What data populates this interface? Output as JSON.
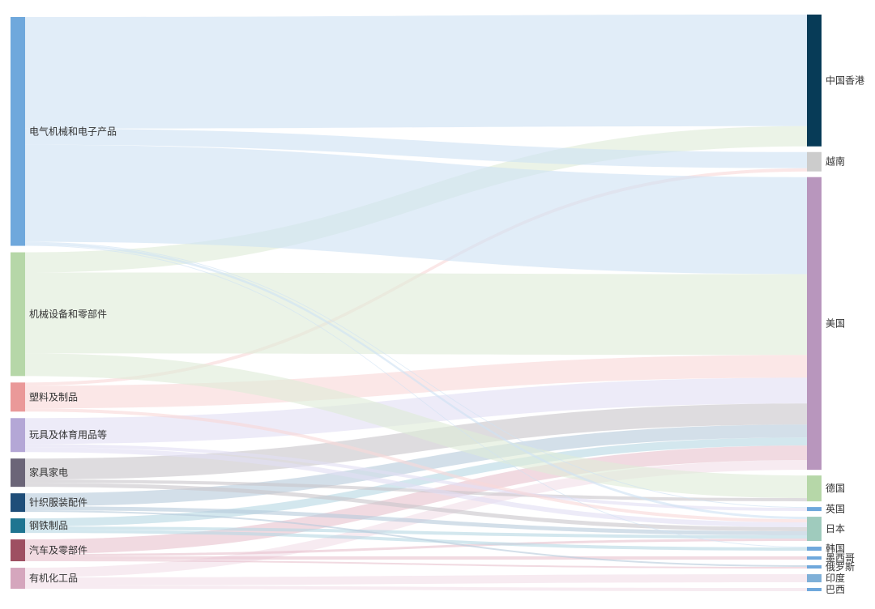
{
  "chart_data": {
    "type": "sankey",
    "colors": {
      "source": {
        "电气机械和电子产品": "#6fa8dc",
        "机械设备和零部件": "#b6d7a8",
        "塑料及制品": "#ea9999",
        "玩具及体育用品等": "#b4a7d6",
        "家具家电": "#6b6578",
        "针织服装配件": "#1f4e79",
        "钢铁制品": "#1f7591",
        "汽车及零部件": "#9e4f62",
        "有机化工品": "#d5a6bd"
      },
      "target": {
        "中国香港": "#073b57",
        "越南": "#cccccc",
        "美国": "#b896bd",
        "德国": "#b6d7a8",
        "英国": "#6fa8dc",
        "日本": "#9fcbbd",
        "韩国": "#6fa8dc",
        "墨西哥": "#6fa8dc",
        "俄罗斯": "#6fa8dc",
        "印度": "#7fb0d8",
        "巴西": "#6fa8dc"
      },
      "link": {
        "电气机械和电子产品": "#cfe2f3",
        "机械设备和零部件": "#dfecd8",
        "塑料及制品": "#f8d9d9",
        "玩具及体育用品等": "#e2def3",
        "家具家电": "#c9c6cc",
        "针织服装配件": "#b8ccdc",
        "钢铁制品": "#b8d9e3",
        "汽车及零部件": "#e8c4ce",
        "有机化工品": "#f2dfe8"
      }
    },
    "sources": [
      "电气机械和电子产品",
      "机械设备和零部件",
      "塑料及制品",
      "玩具及体育用品等",
      "家具家电",
      "针织服装配件",
      "钢铁制品",
      "汽车及零部件",
      "有机化工品"
    ],
    "targets": [
      "中国香港",
      "越南",
      "美国",
      "德国",
      "英国",
      "日本",
      "韩国",
      "墨西哥",
      "俄罗斯",
      "印度",
      "巴西"
    ],
    "links": [
      {
        "source": "电气机械和电子产品",
        "target": "中国香港",
        "value": 138
      },
      {
        "source": "电气机械和电子产品",
        "target": "越南",
        "value": 20
      },
      {
        "source": "电气机械和电子产品",
        "target": "美国",
        "value": 120
      },
      {
        "source": "电气机械和电子产品",
        "target": "英国",
        "value": 1
      },
      {
        "source": "电气机械和电子产品",
        "target": "日本",
        "value": 3
      },
      {
        "source": "电气机械和电子产品",
        "target": "韩国",
        "value": 1
      },
      {
        "source": "机械设备和零部件",
        "target": "中国香港",
        "value": 25
      },
      {
        "source": "机械设备和零部件",
        "target": "美国",
        "value": 100
      },
      {
        "source": "机械设备和零部件",
        "target": "德国",
        "value": 28
      },
      {
        "source": "塑料及制品",
        "target": "越南",
        "value": 4
      },
      {
        "source": "塑料及制品",
        "target": "美国",
        "value": 28
      },
      {
        "source": "塑料及制品",
        "target": "日本",
        "value": 4
      },
      {
        "source": "玩具及体育用品等",
        "target": "美国",
        "value": 32
      },
      {
        "source": "玩具及体育用品等",
        "target": "英国",
        "value": 4
      },
      {
        "source": "玩具及体育用品等",
        "target": "日本",
        "value": 6
      },
      {
        "source": "家具家电",
        "target": "美国",
        "value": 26
      },
      {
        "source": "家具家电",
        "target": "德国",
        "value": 4
      },
      {
        "source": "家具家电",
        "target": "日本",
        "value": 5
      },
      {
        "source": "针织服装配件",
        "target": "美国",
        "value": 16
      },
      {
        "source": "针织服装配件",
        "target": "日本",
        "value": 5
      },
      {
        "source": "针织服装配件",
        "target": "俄罗斯",
        "value": 2
      },
      {
        "source": "钢铁制品",
        "target": "美国",
        "value": 10
      },
      {
        "source": "钢铁制品",
        "target": "日本",
        "value": 4
      },
      {
        "source": "钢铁制品",
        "target": "韩国",
        "value": 4
      },
      {
        "source": "汽车及零部件",
        "target": "美国",
        "value": 18
      },
      {
        "source": "汽车及零部件",
        "target": "日本",
        "value": 3
      },
      {
        "source": "汽车及零部件",
        "target": "墨西哥",
        "value": 4
      },
      {
        "source": "汽车及零部件",
        "target": "俄罗斯",
        "value": 2
      },
      {
        "source": "有机化工品",
        "target": "美国",
        "value": 12
      },
      {
        "source": "有机化工品",
        "target": "印度",
        "value": 10
      },
      {
        "source": "有机化工品",
        "target": "巴西",
        "value": 4
      }
    ]
  }
}
